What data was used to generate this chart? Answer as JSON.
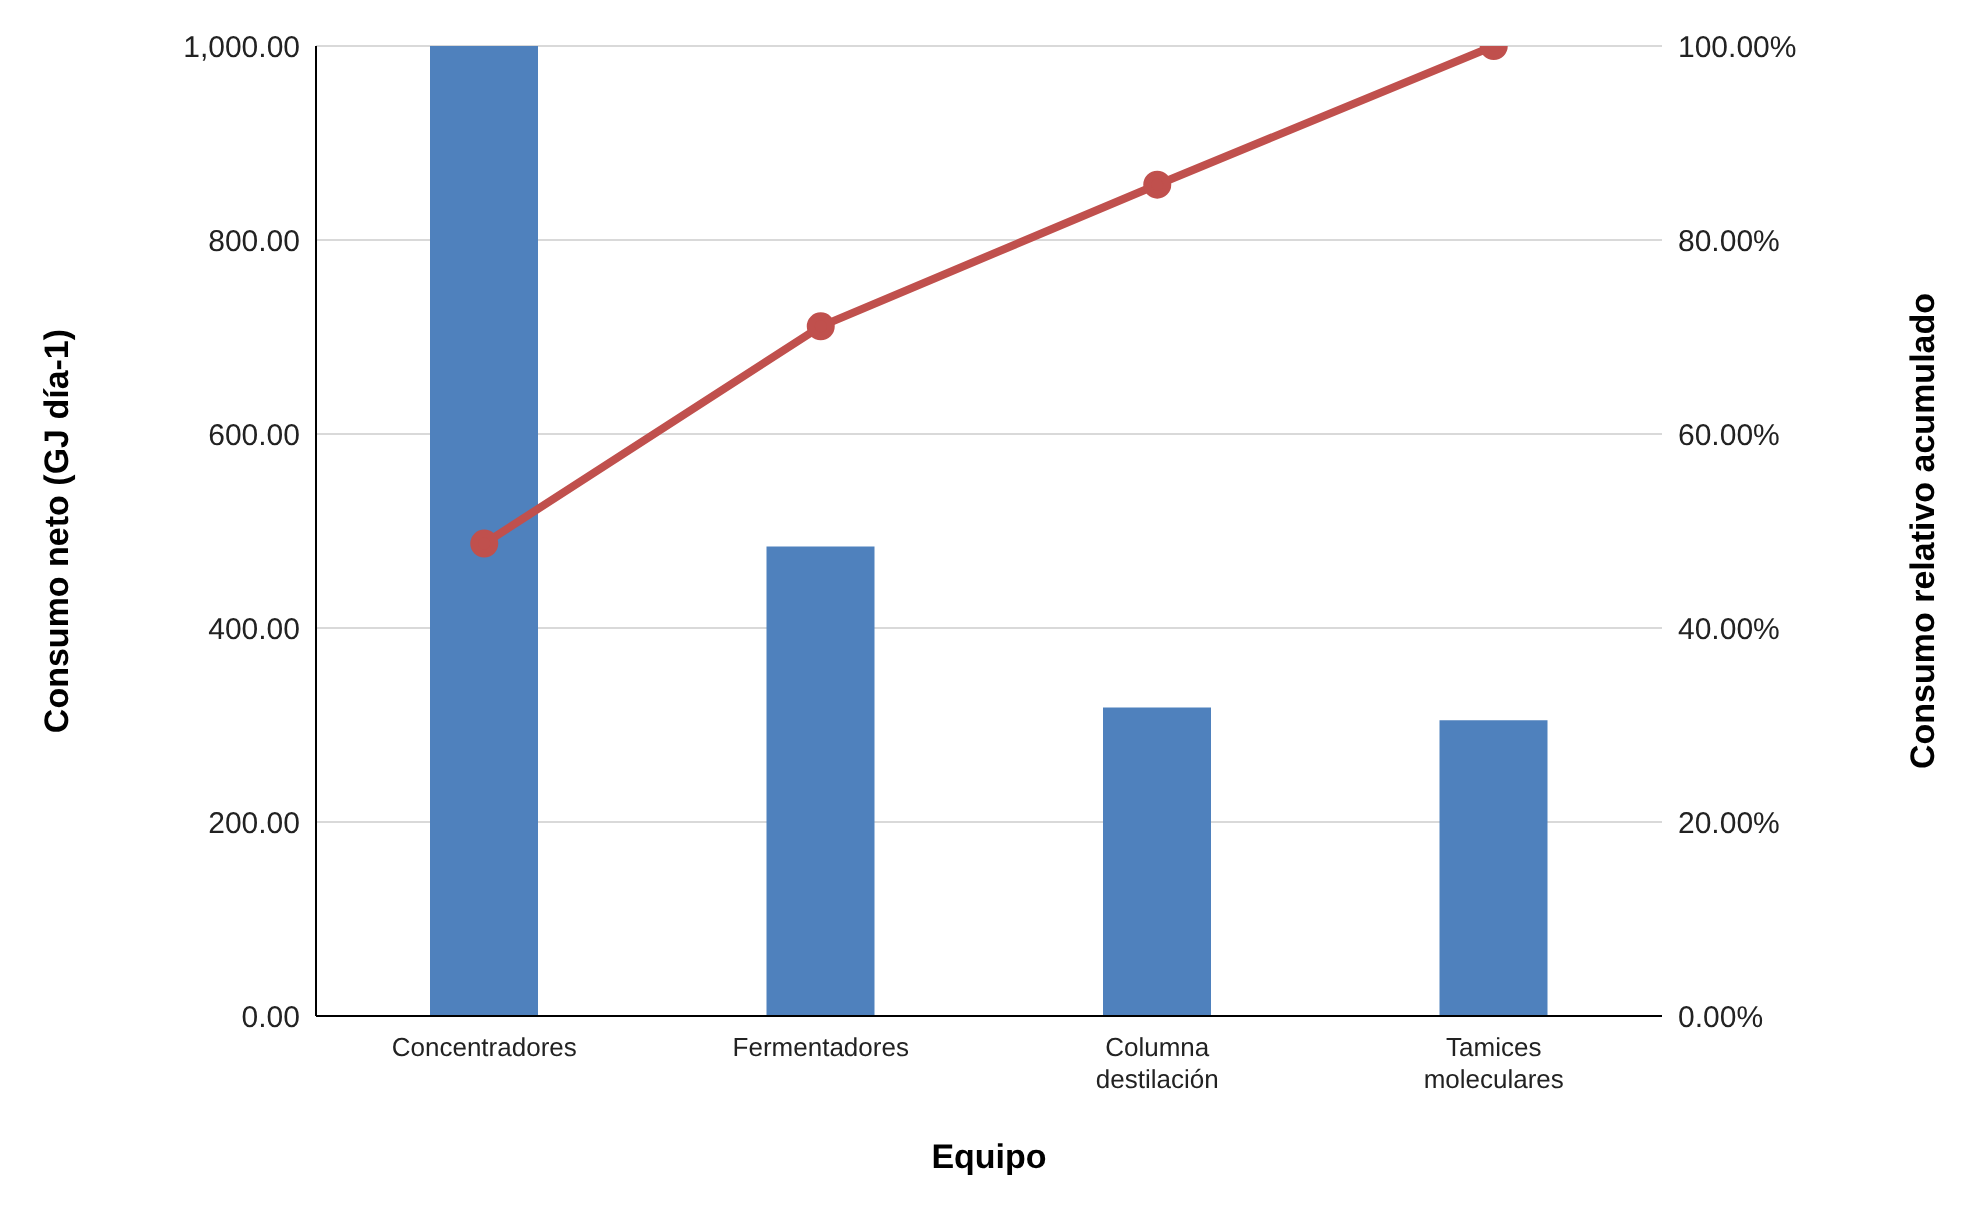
{
  "chart_data": {
    "type": "bar",
    "categories": [
      "Concentradores",
      "Fermentadores",
      "Columna destilación",
      "Tamices moleculares"
    ],
    "series": [
      {
        "color": "#4f81bd",
        "values": [
          1000,
          484,
          318,
          305
        ]
      },
      {
        "type": "line",
        "axis": "y2",
        "color": "#c0504d",
        "marker": "circle",
        "values": [
          48.7,
          71.1,
          85.7,
          100
        ]
      }
    ],
    "xlabel": "Equipo",
    "ylabel": "Consumo  neto (GJ día-1)",
    "y2label": "Consumo  relativo acumulado",
    "ylim": [
      0,
      1000
    ],
    "yticks": [
      {
        "value": 0,
        "label": "0.00"
      },
      {
        "value": 200,
        "label": "200.00"
      },
      {
        "value": 400,
        "label": "400.00"
      },
      {
        "value": 600,
        "label": "600.00"
      },
      {
        "value": 800,
        "label": "800.00"
      },
      {
        "value": 1000,
        "label": "1,000.00"
      }
    ],
    "y2lim": [
      0,
      100
    ],
    "y2ticks": [
      {
        "value": 0,
        "label": "0.00%"
      },
      {
        "value": 20,
        "label": "20.00%"
      },
      {
        "value": 40,
        "label": "40.00%"
      },
      {
        "value": 60,
        "label": "60.00%"
      },
      {
        "value": 80,
        "label": "80.00%"
      },
      {
        "value": 100,
        "label": "100.00%"
      }
    ],
    "grid": "y",
    "legend": false
  }
}
